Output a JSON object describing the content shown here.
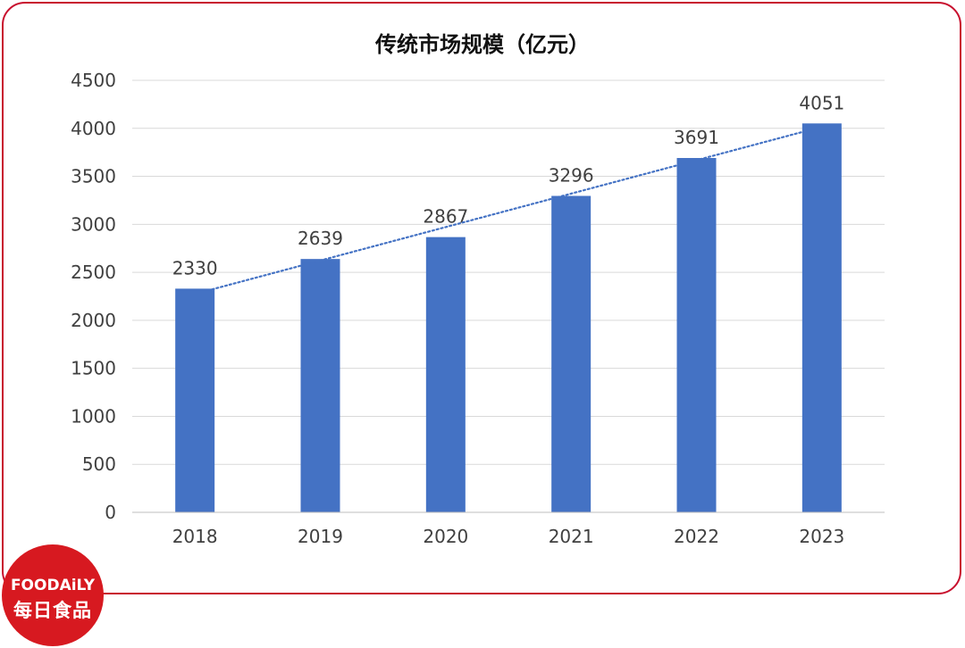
{
  "chart_data": {
    "type": "bar",
    "title": "传统市场规模（亿元）",
    "categories": [
      "2018",
      "2019",
      "2020",
      "2021",
      "2022",
      "2023"
    ],
    "series": [
      {
        "values": [
          2330,
          2639,
          2867,
          3296,
          3691,
          4051
        ]
      }
    ],
    "trendline": {
      "type": "linear",
      "style": "dotted"
    },
    "ylim": [
      0,
      4500
    ],
    "yticks": [
      "0",
      "500",
      "1000",
      "1500",
      "2000",
      "2500",
      "3000",
      "3500",
      "4000",
      "4500"
    ],
    "grid": true,
    "legend": "none",
    "colors": {
      "bar": "#4472c4",
      "trendline": "#4472c4",
      "grid": "#d9d9d9",
      "frame": "#c8102e"
    }
  },
  "logo": {
    "brand_en": "FOODAiLY",
    "brand_cn": "每日食品",
    "color": "#d71920"
  }
}
